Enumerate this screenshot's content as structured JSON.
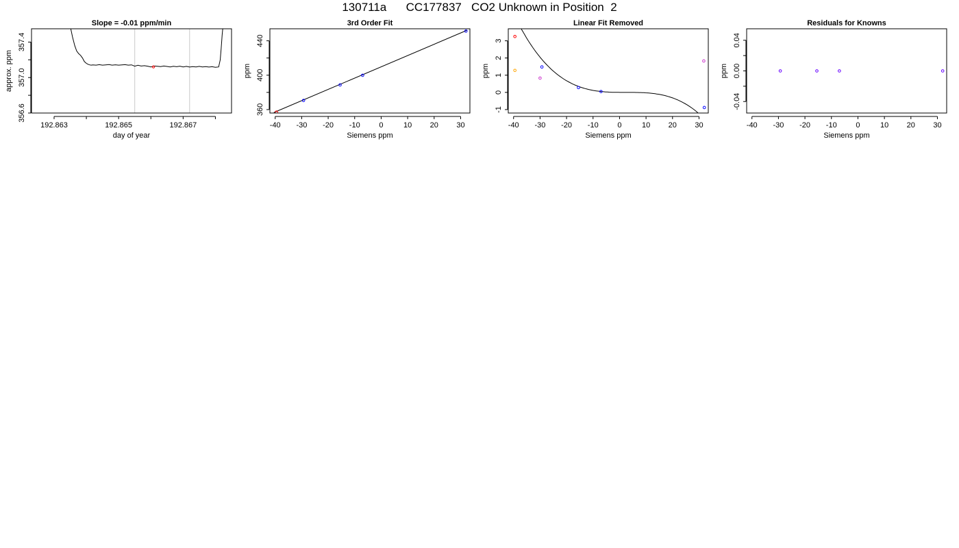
{
  "figure_title": "130711a      CC177837   CO2 Unknown in Position  2",
  "chart_data": [
    {
      "type": "line",
      "title": "Slope =  -0.01  ppm/min",
      "xlabel": "day of year",
      "ylabel": "approx. ppm",
      "xlim": [
        192.8623,
        192.8685
      ],
      "ylim": [
        356.6,
        357.55
      ],
      "x_ticks": [
        192.863,
        192.864,
        192.865,
        192.866,
        192.867,
        192.868
      ],
      "x_tick_labels": [
        "192.863",
        "",
        "192.865",
        "",
        "192.867",
        ""
      ],
      "y_ticks": [
        356.6,
        356.8,
        357.0,
        357.2,
        357.4
      ],
      "y_tick_labels": [
        "356.6",
        "",
        "357.0",
        "",
        "357.4"
      ],
      "vlines": [
        192.8655,
        192.8672
      ],
      "vline_color": "#c8c8c8",
      "line_color": "#000000",
      "series": [
        {
          "x": [
            192.8635,
            192.86357,
            192.86364,
            192.8637,
            192.86376,
            192.86382,
            192.86388,
            192.86394,
            192.864,
            192.86405,
            192.8641,
            192.86415,
            192.8642,
            192.8643,
            192.8644,
            192.8645,
            192.8646,
            192.8647,
            192.8648,
            192.8649,
            192.865,
            192.8651,
            192.8652,
            192.8653,
            192.8654,
            192.8655,
            192.8656,
            192.8657,
            192.8658,
            192.8659,
            192.866,
            192.8661,
            192.8662,
            192.8663,
            192.8664,
            192.8665,
            192.8666,
            192.8667,
            192.8668,
            192.8669,
            192.867,
            192.8671,
            192.8672,
            192.8673,
            192.8674,
            192.8675,
            192.8676,
            192.8677,
            192.8678,
            192.8679,
            192.868,
            192.8681,
            192.86815,
            192.86818,
            192.86821,
            192.86824
          ],
          "values": [
            357.58,
            357.46,
            357.36,
            357.3,
            357.27,
            357.25,
            357.22,
            357.18,
            357.16,
            357.15,
            357.143,
            357.14,
            357.143,
            357.14,
            357.145,
            357.14,
            357.143,
            357.146,
            357.14,
            357.144,
            357.14,
            357.142,
            357.145,
            357.14,
            357.143,
            357.128,
            357.138,
            357.13,
            357.134,
            357.128,
            357.12,
            357.13,
            357.127,
            357.124,
            357.13,
            357.125,
            357.12,
            357.127,
            357.122,
            357.128,
            357.12,
            357.126,
            357.118,
            357.124,
            357.119,
            357.126,
            357.12,
            357.124,
            357.118,
            357.122,
            357.116,
            357.12,
            357.2,
            357.33,
            357.48,
            357.6
          ]
        }
      ],
      "marker": {
        "x": 192.86608,
        "y": 357.12,
        "color": "#ff0000"
      }
    },
    {
      "type": "scatter",
      "title": "3rd Order Fit",
      "xlabel": "Siemens ppm",
      "ylabel": "ppm",
      "xlim": [
        -42,
        33.5
      ],
      "ylim": [
        356,
        454
      ],
      "x_ticks": [
        -40,
        -30,
        -20,
        -10,
        0,
        10,
        20,
        30
      ],
      "x_tick_labels": [
        "-40",
        "-30",
        "-20",
        "-10",
        "0",
        "10",
        "20",
        "30"
      ],
      "y_ticks": [
        360,
        380,
        400,
        420,
        440
      ],
      "y_tick_labels": [
        "360",
        "",
        "400",
        "",
        "440"
      ],
      "fit_line": {
        "x": [
          -40.5,
          32.5
        ],
        "values": [
          356.6,
          452.4
        ],
        "color": "#000000"
      },
      "points": [
        {
          "x": -39.5,
          "y": 357.1,
          "color": "#ff0000"
        },
        {
          "x": -29.3,
          "y": 370.6,
          "color": "#0000ff"
        },
        {
          "x": -15.5,
          "y": 388.7,
          "color": "#0000ff"
        },
        {
          "x": -7.0,
          "y": 399.9,
          "color": "#0000ff"
        },
        {
          "x": 32.0,
          "y": 451.3,
          "color": "#0000ff"
        }
      ]
    },
    {
      "type": "scatter",
      "title": "Linear Fit Removed",
      "xlabel": "Siemens ppm",
      "ylabel": "ppm",
      "xlim": [
        -42,
        33.5
      ],
      "ylim": [
        -1.2,
        3.7
      ],
      "x_ticks": [
        -40,
        -30,
        -20,
        -10,
        0,
        10,
        20,
        30
      ],
      "x_tick_labels": [
        "-40",
        "-30",
        "-20",
        "-10",
        "0",
        "10",
        "20",
        "30"
      ],
      "y_ticks": [
        -1,
        0,
        1,
        2,
        3
      ],
      "y_tick_labels": [
        "-1",
        "0",
        "1",
        "2",
        "3"
      ],
      "fit_curve": {
        "type": "cubic",
        "root": 2.5,
        "coef": -5.96e-05,
        "x_range": [
          -40,
          32
        ],
        "color": "#000000"
      },
      "points": [
        {
          "x": -39.5,
          "y": 3.25,
          "color": "#ff0000"
        },
        {
          "x": -39.5,
          "y": 1.28,
          "color": "#ffa500"
        },
        {
          "x": -30.0,
          "y": 0.83,
          "color": "#cc33cc"
        },
        {
          "x": -29.3,
          "y": 1.48,
          "color": "#0000ff"
        },
        {
          "x": -15.5,
          "y": 0.28,
          "color": "#0000ff"
        },
        {
          "x": -7.0,
          "y": 0.05,
          "color": "#0000ff"
        },
        {
          "x": 31.8,
          "y": 1.83,
          "color": "#cc33cc"
        },
        {
          "x": 32.0,
          "y": -0.88,
          "color": "#0000ff"
        }
      ]
    },
    {
      "type": "scatter",
      "title": "Residuals for Knowns",
      "xlabel": "Siemens ppm",
      "ylabel": "ppm",
      "xlim": [
        -42,
        33.5
      ],
      "ylim": [
        -0.055,
        0.055
      ],
      "x_ticks": [
        -40,
        -30,
        -20,
        -10,
        0,
        10,
        20,
        30
      ],
      "x_tick_labels": [
        "-40",
        "-30",
        "-20",
        "-10",
        "0",
        "10",
        "20",
        "30"
      ],
      "y_ticks": [
        -0.04,
        -0.02,
        0.0,
        0.02,
        0.04
      ],
      "y_tick_labels": [
        "-0.04",
        "",
        "0.00",
        "",
        "0.04"
      ],
      "points": [
        {
          "x": -29.3,
          "y": 0.0,
          "color": "#6600ff"
        },
        {
          "x": -15.5,
          "y": 0.0,
          "color": "#6600ff"
        },
        {
          "x": -7.0,
          "y": 0.0,
          "color": "#6600ff"
        },
        {
          "x": 32.0,
          "y": 0.0,
          "color": "#6600ff"
        }
      ]
    }
  ]
}
